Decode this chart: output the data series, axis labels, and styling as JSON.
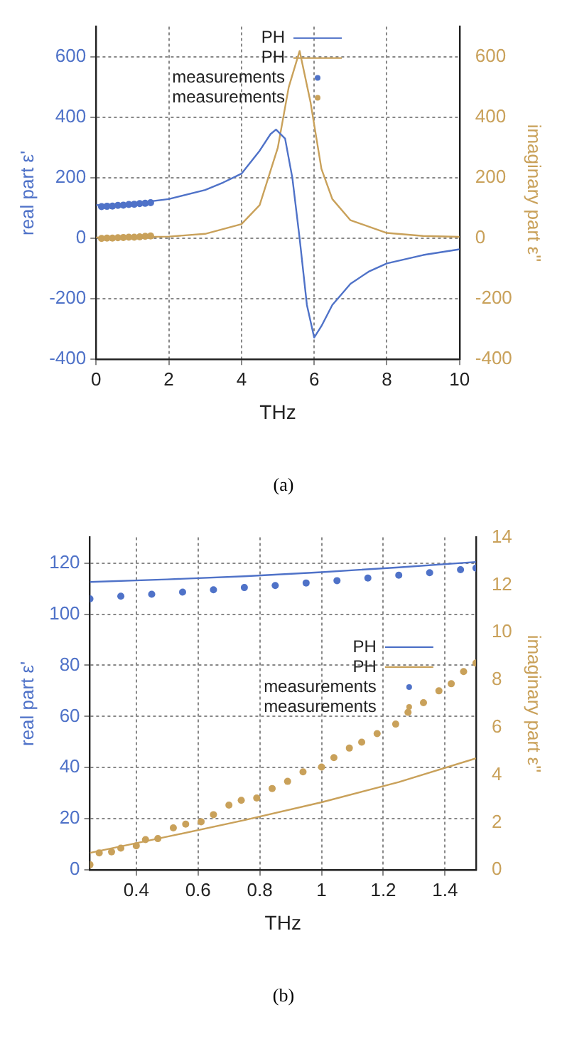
{
  "chart_data": [
    {
      "type": "line",
      "xlabel": "THz",
      "ylabel": "real part ε'",
      "y2label": "imaginary part ε''",
      "xlim": [
        0,
        10
      ],
      "xticks": [
        0,
        2,
        4,
        6,
        8,
        10
      ],
      "ylim": [
        -400,
        700
      ],
      "yticks": [
        -400,
        -200,
        0,
        200,
        400,
        600
      ],
      "y2lim": [
        -400,
        700
      ],
      "y2ticks": [
        -400,
        -200,
        0,
        200,
        400,
        600
      ],
      "grid": true,
      "legend": "top",
      "annotations": [
        "(a)"
      ],
      "series": [
        {
          "name": "PH",
          "color": "#4f72c8",
          "x": [
            0,
            1,
            2,
            3,
            3.5,
            4,
            4.5,
            4.8,
            4.95,
            5.2,
            5.4,
            5.6,
            5.8,
            6,
            6.2,
            6.5,
            7,
            7.5,
            8,
            9,
            10
          ],
          "values": [
            110,
            115,
            130,
            160,
            185,
            214,
            290,
            345,
            360,
            330,
            200,
            0,
            -220,
            -328,
            -290,
            -220,
            -150,
            -110,
            -83,
            -55,
            -36
          ]
        },
        {
          "name": "PH",
          "axis": "y2",
          "color": "#c9a15a",
          "x": [
            0,
            1,
            2,
            3,
            4,
            4.5,
            5,
            5.3,
            5.6,
            5.9,
            6.2,
            6.5,
            7,
            8,
            9,
            10
          ],
          "values": [
            3,
            4,
            6,
            15,
            47,
            110,
            300,
            500,
            620,
            450,
            230,
            130,
            60,
            18,
            8,
            5
          ]
        },
        {
          "name": "measurements",
          "type": "scatter",
          "color": "#4f72c8",
          "x": [
            0.15,
            0.3,
            0.45,
            0.6,
            0.75,
            0.9,
            1.05,
            1.2,
            1.35,
            1.5
          ],
          "values": [
            105,
            106,
            107,
            109,
            110,
            112,
            113,
            115,
            116,
            118
          ]
        },
        {
          "name": "measurements",
          "type": "scatter",
          "axis": "y2",
          "color": "#c9a15a",
          "x": [
            0.15,
            0.3,
            0.45,
            0.6,
            0.75,
            0.9,
            1.05,
            1.2,
            1.35,
            1.5
          ],
          "values": [
            0,
            1,
            1,
            2,
            3,
            4,
            4,
            5,
            7,
            8
          ]
        }
      ]
    },
    {
      "type": "line",
      "xlabel": "THz",
      "ylabel": "real part ε'",
      "y2label": "imaginary part ε''",
      "xlim": [
        0.25,
        1.5
      ],
      "xticks": [
        0.4,
        0.6,
        0.8,
        1,
        1.2,
        1.4
      ],
      "ylim": [
        0,
        130
      ],
      "yticks": [
        0,
        20,
        40,
        60,
        80,
        100,
        120
      ],
      "y2lim": [
        0,
        14
      ],
      "y2ticks": [
        0,
        2,
        4,
        6,
        8,
        10,
        12,
        14
      ],
      "grid": true,
      "legend": "right",
      "annotations": [
        "(b)"
      ],
      "series": [
        {
          "name": "PH",
          "color": "#4f72c8",
          "x": [
            0.25,
            0.5,
            0.75,
            1,
            1.25,
            1.5
          ],
          "values": [
            112.6,
            113.6,
            114.8,
            116.4,
            118.3,
            120.4
          ]
        },
        {
          "name": "PH",
          "axis": "y2",
          "color": "#c9a15a",
          "x": [
            0.25,
            0.5,
            0.75,
            1,
            1.25,
            1.5
          ],
          "values": [
            0.72,
            1.4,
            2.1,
            2.85,
            3.7,
            4.7
          ]
        },
        {
          "name": "measurements",
          "type": "scatter",
          "color": "#4f72c8",
          "x": [
            0.25,
            0.35,
            0.45,
            0.55,
            0.65,
            0.75,
            0.85,
            0.95,
            1.05,
            1.15,
            1.25,
            1.35,
            1.45,
            1.5
          ],
          "values": [
            106,
            107,
            107.8,
            108.6,
            109.5,
            110.4,
            111.2,
            112.2,
            113.1,
            114.1,
            115.2,
            116.2,
            117.4,
            118
          ]
        },
        {
          "name": "measurements",
          "type": "scatter",
          "axis": "y2",
          "color": "#c9a15a",
          "x": [
            0.25,
            0.28,
            0.32,
            0.35,
            0.4,
            0.43,
            0.47,
            0.52,
            0.56,
            0.61,
            0.65,
            0.7,
            0.74,
            0.79,
            0.84,
            0.89,
            0.94,
            1,
            1.04,
            1.09,
            1.13,
            1.18,
            1.24,
            1.28,
            1.33,
            1.38,
            1.42,
            1.46,
            1.5
          ],
          "values": [
            0.22,
            0.72,
            0.76,
            0.92,
            1.02,
            1.28,
            1.32,
            1.77,
            1.93,
            2.03,
            2.33,
            2.73,
            2.93,
            3.03,
            3.43,
            3.73,
            4.13,
            4.33,
            4.73,
            5.13,
            5.38,
            5.74,
            6.14,
            6.64,
            7.04,
            7.54,
            7.84,
            8.35,
            8.71
          ]
        }
      ]
    }
  ]
}
